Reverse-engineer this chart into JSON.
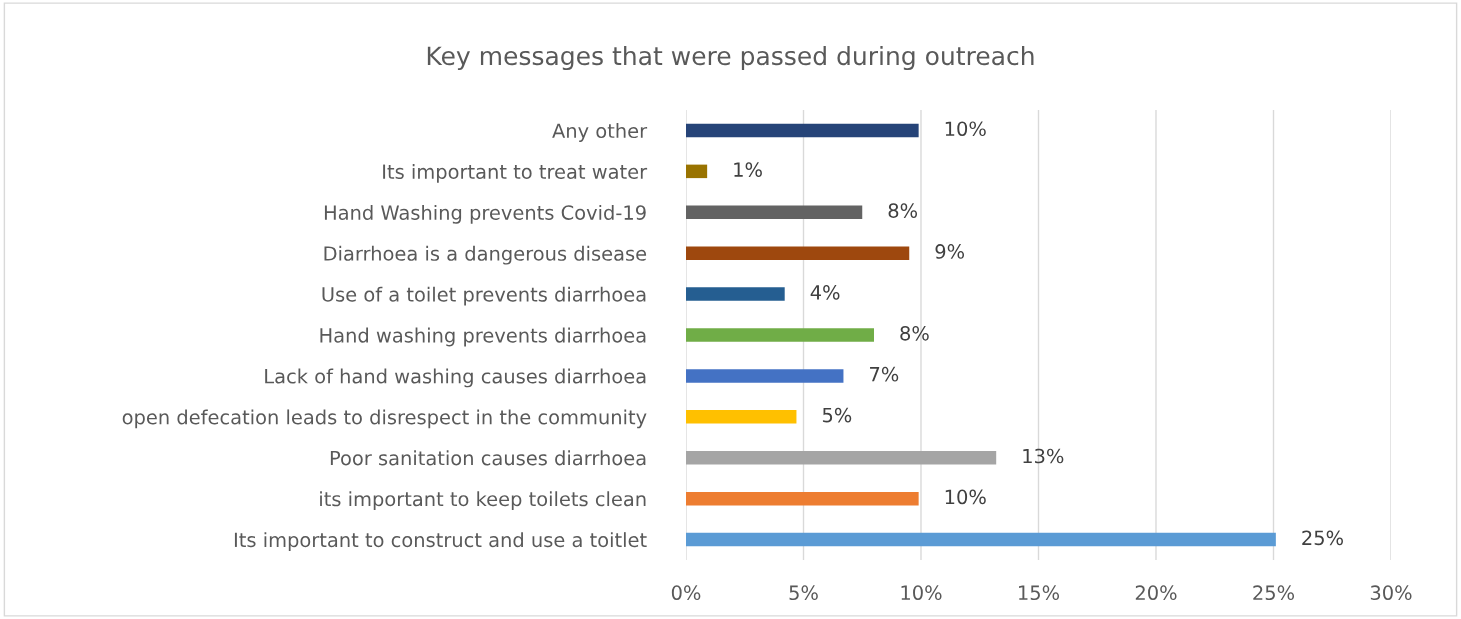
{
  "chart_data": {
    "type": "bar",
    "orientation": "horizontal",
    "title": "Key messages that were passed during outreach",
    "categories": [
      "Any other",
      "Its important to treat water",
      "Hand Washing prevents Covid-19",
      "Diarrhoea is a dangerous disease",
      "Use of a toilet prevents diarrhoea",
      "Hand washing prevents diarrhoea",
      "Lack of hand washing causes diarrhoea",
      "open defecation leads to disrespect in the community",
      "Poor sanitation causes diarrhoea",
      "its important to keep toilets clean",
      "Its important to construct and use a toitlet"
    ],
    "values": [
      9.9,
      0.9,
      7.5,
      9.5,
      4.2,
      8.0,
      6.7,
      4.7,
      13.2,
      9.9,
      25.1
    ],
    "value_labels": [
      "10%",
      "1%",
      "8%",
      "9%",
      "4%",
      "8%",
      "7%",
      "5%",
      "13%",
      "10%",
      "25%"
    ],
    "colors": [
      "#264478",
      "#997300",
      "#636363",
      "#9e480e",
      "#255e91",
      "#70ad47",
      "#4472c4",
      "#ffc000",
      "#a5a5a5",
      "#ed7d31",
      "#5b9bd5"
    ],
    "xlim": [
      0,
      30
    ],
    "xticks": [
      {
        "value": 0,
        "label": "0%"
      },
      {
        "value": 5,
        "label": "5%"
      },
      {
        "value": 10,
        "label": "10%"
      },
      {
        "value": 15,
        "label": "15%"
      },
      {
        "value": 20,
        "label": "20%"
      },
      {
        "value": 25,
        "label": "25%"
      },
      {
        "value": 30,
        "label": "30%"
      }
    ],
    "grid": "x"
  }
}
